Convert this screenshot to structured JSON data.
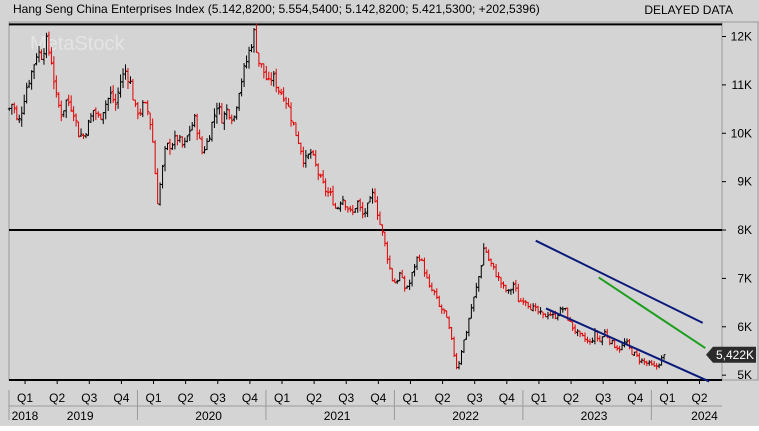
{
  "header": {
    "title": "Hang Seng China Enterprises Index (5.142,8200; 5.554,5400; 5.142,8200; 5.421,5300; +202,5396)",
    "status": "DELAYED DATA",
    "watermark": "MetaStock"
  },
  "price_badge": "5,422K",
  "colors": {
    "background": "#d4d4d4",
    "up_bar": "#000000",
    "down_bar": "#e00000",
    "channel": "#0a1a7a",
    "trendline": "#1e9e1e",
    "horizontal_line": "#000000"
  },
  "chart_data": {
    "type": "bar",
    "style": "ohlc-weekly",
    "title": "Hang Seng China Enterprises Index",
    "ylim": [
      4900,
      12300
    ],
    "y_ticks": [
      {
        "value": 12000,
        "label": "12K"
      },
      {
        "value": 11000,
        "label": "11K"
      },
      {
        "value": 10000,
        "label": "10K"
      },
      {
        "value": 9000,
        "label": "9K"
      },
      {
        "value": 8000,
        "label": "8K"
      },
      {
        "value": 7000,
        "label": "7K"
      },
      {
        "value": 6000,
        "label": "6K"
      },
      {
        "value": 5000,
        "label": "5K"
      }
    ],
    "x_range": [
      2018.75,
      2024.3
    ],
    "quarter_ticks": [
      {
        "t": 2018.875,
        "label": "Q1"
      },
      {
        "t": 2019.125,
        "label": "Q2"
      },
      {
        "t": 2019.375,
        "label": "Q3"
      },
      {
        "t": 2019.625,
        "label": "Q4"
      },
      {
        "t": 2019.875,
        "label": "Q1"
      },
      {
        "t": 2020.125,
        "label": "Q2"
      },
      {
        "t": 2020.375,
        "label": "Q3"
      },
      {
        "t": 2020.625,
        "label": "Q4"
      },
      {
        "t": 2020.875,
        "label": "Q1"
      },
      {
        "t": 2021.125,
        "label": "Q2"
      },
      {
        "t": 2021.375,
        "label": "Q3"
      },
      {
        "t": 2021.625,
        "label": "Q4"
      },
      {
        "t": 2021.875,
        "label": "Q1"
      },
      {
        "t": 2022.125,
        "label": "Q2"
      },
      {
        "t": 2022.375,
        "label": "Q3"
      },
      {
        "t": 2022.625,
        "label": "Q4"
      },
      {
        "t": 2022.875,
        "label": "Q1"
      },
      {
        "t": 2023.125,
        "label": "Q2"
      },
      {
        "t": 2023.375,
        "label": "Q3"
      },
      {
        "t": 2023.625,
        "label": "Q4"
      },
      {
        "t": 2023.875,
        "label": "Q1"
      },
      {
        "t": 2024.125,
        "label": "Q2"
      }
    ],
    "year_labels": [
      {
        "t": 2018.77,
        "label": "2018"
      },
      {
        "t": 2019.2,
        "label": "2019"
      },
      {
        "t": 2020.2,
        "label": "2020"
      },
      {
        "t": 2021.2,
        "label": "2021"
      },
      {
        "t": 2022.2,
        "label": "2022"
      },
      {
        "t": 2023.2,
        "label": "2023"
      },
      {
        "t": 2024.06,
        "label": "2024"
      }
    ],
    "year_separators": [
      2018.75,
      2019.75,
      2020.75,
      2021.75,
      2022.75,
      2023.75
    ],
    "horizontal_lines": [
      12250,
      8000,
      4900
    ],
    "channel_upper": [
      {
        "t": 2022.85,
        "v": 7780
      },
      {
        "t": 2024.15,
        "v": 6080
      }
    ],
    "channel_lower": [
      {
        "t": 2022.93,
        "v": 6380
      },
      {
        "t": 2024.2,
        "v": 4870
      }
    ],
    "trendline": [
      {
        "t": 2023.34,
        "v": 7020
      },
      {
        "t": 2024.17,
        "v": 5560
      }
    ],
    "last_value": 5421.53,
    "price_path": [
      [
        2018.75,
        10500
      ],
      [
        2018.78,
        10650
      ],
      [
        2018.82,
        10150
      ],
      [
        2018.85,
        10500
      ],
      [
        2018.88,
        10900
      ],
      [
        2018.93,
        11300
      ],
      [
        2018.97,
        11700
      ],
      [
        2019.0,
        11600
      ],
      [
        2019.04,
        11900
      ],
      [
        2019.08,
        11500
      ],
      [
        2019.12,
        10700
      ],
      [
        2019.16,
        10400
      ],
      [
        2019.2,
        10700
      ],
      [
        2019.25,
        10500
      ],
      [
        2019.29,
        10000
      ],
      [
        2019.33,
        9950
      ],
      [
        2019.37,
        10200
      ],
      [
        2019.41,
        10500
      ],
      [
        2019.45,
        10300
      ],
      [
        2019.5,
        10600
      ],
      [
        2019.54,
        10800
      ],
      [
        2019.58,
        10600
      ],
      [
        2019.62,
        11100
      ],
      [
        2019.66,
        11300
      ],
      [
        2019.7,
        11000
      ],
      [
        2019.73,
        10500
      ],
      [
        2019.77,
        10450
      ],
      [
        2019.8,
        10600
      ],
      [
        2019.84,
        10400
      ],
      [
        2019.88,
        9600
      ],
      [
        2019.9,
        8500
      ],
      [
        2019.93,
        9000
      ],
      [
        2019.97,
        9700
      ],
      [
        2020.02,
        9800
      ],
      [
        2020.06,
        9900
      ],
      [
        2020.11,
        9700
      ],
      [
        2020.16,
        10100
      ],
      [
        2020.2,
        10300
      ],
      [
        2020.25,
        9600
      ],
      [
        2020.29,
        9800
      ],
      [
        2020.33,
        10200
      ],
      [
        2020.37,
        10600
      ],
      [
        2020.41,
        10300
      ],
      [
        2020.45,
        10500
      ],
      [
        2020.5,
        10300
      ],
      [
        2020.54,
        10900
      ],
      [
        2020.58,
        11300
      ],
      [
        2020.62,
        11700
      ],
      [
        2020.66,
        12100
      ],
      [
        2020.69,
        11500
      ],
      [
        2020.73,
        11300
      ],
      [
        2020.77,
        11000
      ],
      [
        2020.8,
        11200
      ],
      [
        2020.85,
        10900
      ],
      [
        2020.89,
        10800
      ],
      [
        2020.93,
        10500
      ],
      [
        2020.97,
        10100
      ],
      [
        2021.01,
        9800
      ],
      [
        2021.05,
        9400
      ],
      [
        2021.1,
        9600
      ],
      [
        2021.14,
        9300
      ],
      [
        2021.18,
        9000
      ],
      [
        2021.22,
        8800
      ],
      [
        2021.26,
        8700
      ],
      [
        2021.3,
        8400
      ],
      [
        2021.34,
        8700
      ],
      [
        2021.38,
        8500
      ],
      [
        2021.42,
        8300
      ],
      [
        2021.46,
        8600
      ],
      [
        2021.5,
        8300
      ],
      [
        2021.55,
        8500
      ],
      [
        2021.59,
        8800
      ],
      [
        2021.63,
        8200
      ],
      [
        2021.66,
        7900
      ],
      [
        2021.7,
        7400
      ],
      [
        2021.73,
        7000
      ],
      [
        2021.76,
        6900
      ],
      [
        2021.79,
        7100
      ],
      [
        2021.83,
        6800
      ],
      [
        2021.87,
        6900
      ],
      [
        2021.91,
        7300
      ],
      [
        2021.94,
        7500
      ],
      [
        2021.98,
        7200
      ],
      [
        2022.02,
        6800
      ],
      [
        2022.06,
        6700
      ],
      [
        2022.1,
        6400
      ],
      [
        2022.14,
        6300
      ],
      [
        2022.18,
        5900
      ],
      [
        2022.21,
        5500
      ],
      [
        2022.24,
        5100
      ],
      [
        2022.27,
        5500
      ],
      [
        2022.31,
        5900
      ],
      [
        2022.34,
        6300
      ],
      [
        2022.38,
        6700
      ],
      [
        2022.42,
        7200
      ],
      [
        2022.45,
        7700
      ],
      [
        2022.48,
        7400
      ],
      [
        2022.52,
        7200
      ],
      [
        2022.56,
        7000
      ],
      [
        2022.6,
        6800
      ],
      [
        2022.64,
        6700
      ],
      [
        2022.68,
        6900
      ],
      [
        2022.72,
        6500
      ],
      [
        2022.76,
        6600
      ],
      [
        2022.8,
        6450
      ],
      [
        2022.84,
        6350
      ],
      [
        2022.87,
        6300
      ],
      [
        2022.91,
        6200
      ],
      [
        2022.95,
        6300
      ],
      [
        2022.99,
        6200
      ],
      [
        2023.03,
        6300
      ],
      [
        2023.07,
        6400
      ],
      [
        2023.11,
        6100
      ],
      [
        2023.15,
        5950
      ],
      [
        2023.19,
        5800
      ],
      [
        2023.23,
        5750
      ],
      [
        2023.27,
        5650
      ],
      [
        2023.31,
        5850
      ],
      [
        2023.35,
        5700
      ],
      [
        2023.39,
        5900
      ],
      [
        2023.43,
        5700
      ],
      [
        2023.47,
        5600
      ],
      [
        2023.51,
        5550
      ],
      [
        2023.55,
        5700
      ],
      [
        2023.59,
        5500
      ],
      [
        2023.63,
        5400
      ],
      [
        2023.67,
        5300
      ],
      [
        2023.71,
        5250
      ],
      [
        2023.75,
        5200
      ],
      [
        2023.78,
        5140
      ],
      [
        2023.82,
        5300
      ],
      [
        2023.86,
        5422
      ]
    ]
  }
}
